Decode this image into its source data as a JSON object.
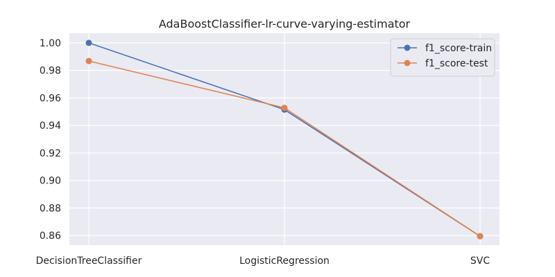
{
  "chart_data": {
    "type": "line",
    "title": "AdaBoostClassifier-lr-curve-varying-estimator",
    "xlabel": "",
    "ylabel": "",
    "categories": [
      "DecisionTreeClassifier",
      "LogisticRegression",
      "SVC"
    ],
    "series": [
      {
        "name": "f1_score-train",
        "values": [
          1.0,
          0.9515,
          0.8595
        ],
        "color": "#4c72b0"
      },
      {
        "name": "f1_score-test",
        "values": [
          0.9868,
          0.9528,
          0.8595
        ],
        "color": "#dd8452"
      }
    ],
    "ylim": [
      0.853,
      1.007
    ],
    "yticks": [
      "0.86",
      "0.88",
      "0.90",
      "0.92",
      "0.94",
      "0.96",
      "0.98",
      "1.00"
    ],
    "grid": true,
    "legend": "top-right",
    "colors": {
      "background": "#eaeaf2",
      "grid": "#ffffff",
      "text": "#262626"
    }
  }
}
